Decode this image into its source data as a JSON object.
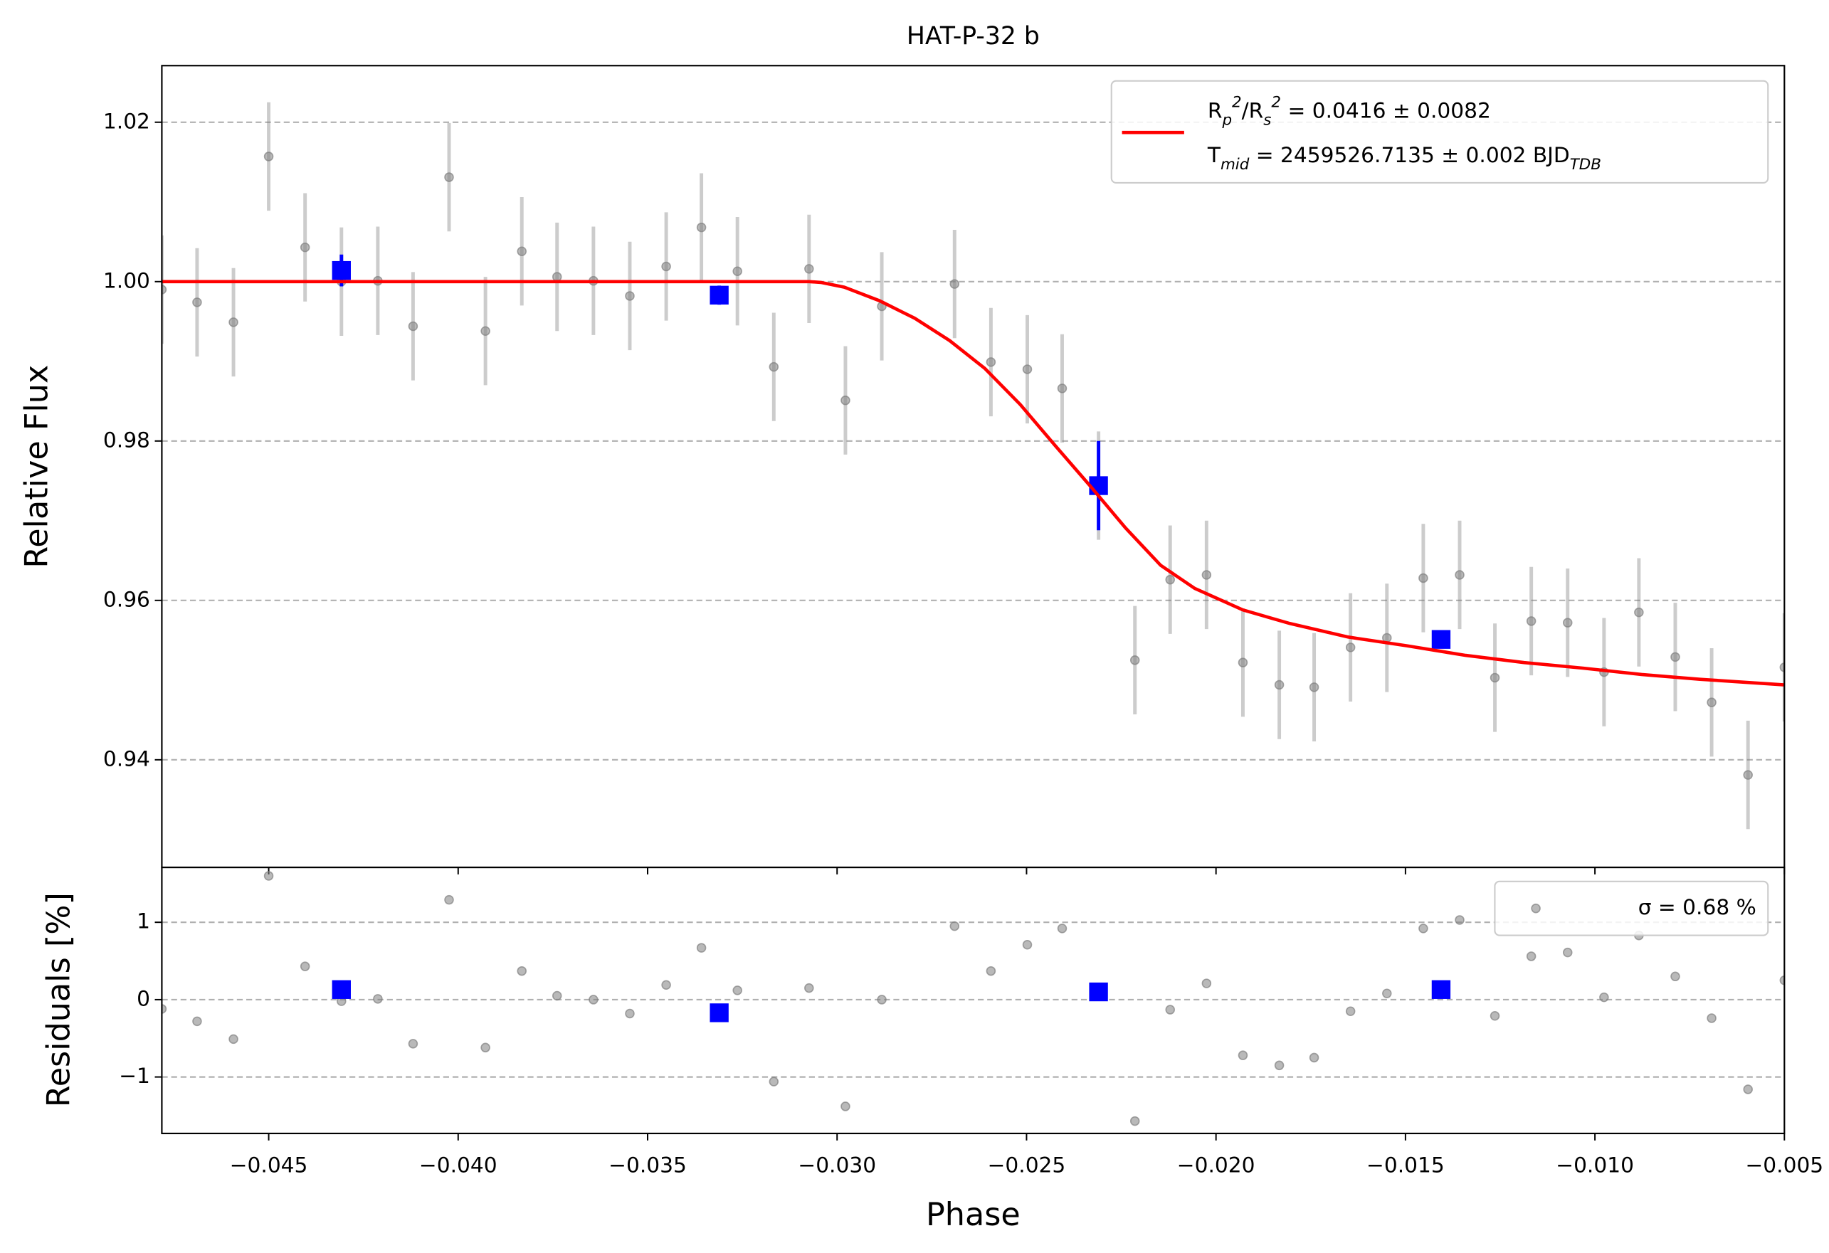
{
  "chart_data": [
    {
      "type": "scatter",
      "title": "HAT-P-32 b",
      "ylabel": "Relative Flux",
      "xlim": [
        -0.04782,
        -0.005
      ],
      "ylim": [
        0.9265,
        1.0271
      ],
      "yticks": [
        0.94,
        0.96,
        0.98,
        {
          "value": 1,
          "label": "1.00"
        },
        1.02
      ],
      "grid": "y",
      "legend": "upper right",
      "series": [
        {
          "kind": "errorbar",
          "marker": "circle",
          "color": "#808080",
          "x": [
            -0.04782,
            -0.04689,
            -0.04593,
            -0.045,
            -0.04404,
            -0.04308,
            -0.04212,
            -0.04119,
            -0.04024,
            -0.03928,
            -0.03832,
            -0.03739,
            -0.03643,
            -0.03547,
            -0.03451,
            -0.03358,
            -0.03263,
            -0.03167,
            -0.03074,
            -0.02978,
            -0.02882,
            -0.0269,
            -0.02594,
            -0.02498,
            -0.02406,
            -0.0231,
            -0.02214,
            -0.02121,
            -0.02025,
            -0.01929,
            -0.01833,
            -0.01741,
            -0.01645,
            -0.01549,
            -0.01453,
            -0.01357,
            -0.01264,
            -0.01168,
            -0.01072,
            -0.00976,
            -0.00884,
            -0.00788,
            -0.00692,
            -0.00596,
            -0.005
          ],
          "values": [
            0.999,
            0.9974,
            0.9949,
            1.0157,
            1.0043,
            1.0,
            1.0001,
            0.9944,
            1.0131,
            0.9938,
            1.0038,
            1.0006,
            1.0001,
            0.9982,
            1.0019,
            1.0068,
            1.0013,
            0.9893,
            1.0016,
            0.9851,
            0.9969,
            0.9997,
            0.9899,
            0.989,
            0.9866,
            0.9744,
            0.9525,
            0.9626,
            0.9632,
            0.9522,
            0.9494,
            0.9491,
            0.9541,
            0.9553,
            0.9628,
            0.9632,
            0.9503,
            0.9574,
            0.9572,
            0.951,
            0.9585,
            0.9529,
            0.9472,
            0.9381,
            0.9516
          ],
          "yerr": 0.0068
        },
        {
          "kind": "errorbar",
          "marker": "square",
          "color": "#0000ff",
          "x": [
            -0.04308,
            -0.03311,
            -0.0231,
            -0.01406
          ],
          "values": [
            1.0014,
            0.9983,
            0.9744,
            0.9551
          ],
          "yerr": [
            0.002,
            0.0012,
            0.0056,
            0.001
          ]
        },
        {
          "kind": "line",
          "color": "#ff0000",
          "name": "R_{p}^{2}/R_{s}^{2} = 0.0416 ± 0.0082\nT_{mid} = 2459526.7135 ± 0.002 BJD_{TDB}",
          "x": [
            -0.04782,
            -0.03074,
            -0.03043,
            -0.02981,
            -0.02888,
            -0.02795,
            -0.02703,
            -0.0261,
            -0.02517,
            -0.02424,
            -0.02331,
            -0.02239,
            -0.02146,
            -0.02056,
            -0.01929,
            -0.01805,
            -0.01651,
            -0.01496,
            -0.01341,
            -0.01187,
            -0.01032,
            -0.00877,
            -0.00723,
            -0.005
          ],
          "values": [
            1.0,
            1.0,
            0.9999,
            0.9993,
            0.9976,
            0.9954,
            0.9926,
            0.9891,
            0.9846,
            0.9794,
            0.9743,
            0.9691,
            0.9644,
            0.9615,
            0.9588,
            0.9571,
            0.9554,
            0.9543,
            0.9531,
            0.9522,
            0.9515,
            0.9507,
            0.9501,
            0.9494
          ]
        }
      ]
    },
    {
      "type": "scatter",
      "xlabel": "Phase",
      "ylabel": "Residuals [%]",
      "xlim": [
        -0.04782,
        -0.005
      ],
      "ylim": [
        -1.73,
        1.71
      ],
      "xticks": [
        {
          "value": -0.045,
          "label": "−0.045"
        },
        {
          "value": -0.04,
          "label": "−0.040"
        },
        {
          "value": -0.035,
          "label": "−0.035"
        },
        {
          "value": -0.03,
          "label": "−0.030"
        },
        {
          "value": -0.025,
          "label": "−0.025"
        },
        {
          "value": -0.02,
          "label": "−0.020"
        },
        {
          "value": -0.015,
          "label": "−0.015"
        },
        {
          "value": -0.01,
          "label": "−0.010"
        },
        {
          "value": -0.005,
          "label": "−0.005"
        }
      ],
      "yticks": [
        {
          "value": -1,
          "label": "−1"
        },
        0,
        1
      ],
      "grid": "y",
      "legend": "upper right",
      "series": [
        {
          "kind": "errorbar",
          "marker": "circle",
          "color": "#808080",
          "name": "σ = 0.68 %",
          "x": [
            -0.04782,
            -0.04689,
            -0.04593,
            -0.045,
            -0.04404,
            -0.04308,
            -0.04212,
            -0.04119,
            -0.04024,
            -0.03928,
            -0.03832,
            -0.03739,
            -0.03643,
            -0.03547,
            -0.03451,
            -0.03358,
            -0.03263,
            -0.03167,
            -0.03074,
            -0.02978,
            -0.02882,
            -0.0269,
            -0.02594,
            -0.02498,
            -0.02406,
            -0.0231,
            -0.02214,
            -0.02121,
            -0.02025,
            -0.01929,
            -0.01833,
            -0.01741,
            -0.01645,
            -0.01549,
            -0.01453,
            -0.01357,
            -0.01264,
            -0.01168,
            -0.01072,
            -0.00976,
            -0.00884,
            -0.00788,
            -0.00692,
            -0.00596,
            -0.005
          ],
          "values": [
            -0.12,
            -0.28,
            -0.51,
            1.6,
            0.43,
            -0.02,
            0.01,
            -0.57,
            1.29,
            -0.62,
            0.37,
            0.05,
            0.0,
            -0.18,
            0.19,
            0.67,
            0.12,
            -1.06,
            0.15,
            -1.38,
            0.0,
            0.95,
            0.37,
            0.71,
            0.92,
            0.1,
            -1.57,
            -0.13,
            0.21,
            -0.72,
            -0.85,
            -0.75,
            -0.15,
            0.08,
            0.92,
            1.03,
            -0.21,
            0.56,
            0.61,
            0.03,
            0.83,
            0.3,
            -0.24,
            -1.16,
            0.25
          ]
        },
        {
          "kind": "errorbar",
          "marker": "square",
          "color": "#0000ff",
          "x": [
            -0.04308,
            -0.03311,
            -0.0231,
            -0.01406
          ],
          "values": [
            0.13,
            -0.17,
            0.1,
            0.13
          ]
        }
      ]
    }
  ]
}
